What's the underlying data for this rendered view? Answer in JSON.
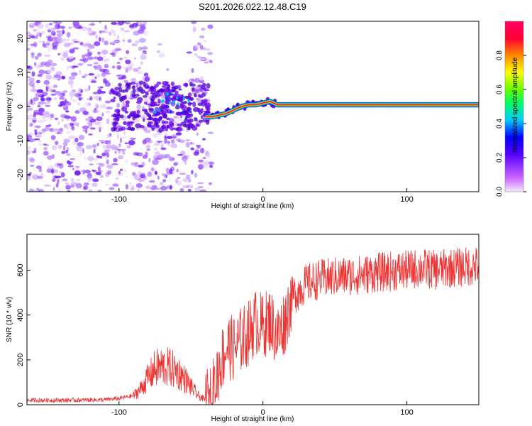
{
  "title": "S201.2026.022.12.48.C19",
  "chart_data": [
    {
      "type": "heatmap",
      "xlabel": "Height of straight line (km)",
      "ylabel": "Frequency (Hz)",
      "xlim": [
        -164,
        150
      ],
      "ylim": [
        -25,
        25
      ],
      "xticks": [
        -100,
        0,
        100
      ],
      "yticks": [
        -20,
        -10,
        0,
        10,
        20
      ],
      "grid": false,
      "colorbar": {
        "label": "Normalized spectral amplitude",
        "range": [
          0.0,
          1.0
        ],
        "ticks": [
          0.0,
          0.2,
          0.4,
          0.6,
          0.8
        ],
        "colors": [
          "#f0e0ff",
          "#cc66ff",
          "#6600ff",
          "#0000ff",
          "#00ccff",
          "#00ff66",
          "#66ff00",
          "#ffff00",
          "#ff8800",
          "#ff0033",
          "#ff0066"
        ]
      },
      "ridge": {
        "x": [
          -40,
          -35,
          -30,
          -25,
          -20,
          -15,
          -10,
          -5,
          0,
          5,
          10,
          20,
          40,
          60,
          80,
          100,
          120,
          150
        ],
        "y": [
          -3,
          -3,
          -2.5,
          -2,
          -1,
          0,
          0.5,
          0.5,
          1,
          1.5,
          0.5,
          0.5,
          0.5,
          0.5,
          0.5,
          0.5,
          0.5,
          0.5
        ]
      }
    },
    {
      "type": "line",
      "xlabel": "Height of straight line (km)",
      "ylabel": "SNR (10 * v/v)",
      "xlim": [
        -164,
        150
      ],
      "ylim": [
        0,
        760
      ],
      "xticks": [
        -100,
        0,
        100
      ],
      "yticks": [
        0,
        200,
        400,
        600
      ],
      "grid": false,
      "series": [
        {
          "color": "#ee3333",
          "x": [
            -164,
            -140,
            -110,
            -100,
            -90,
            -85,
            -80,
            -75,
            -70,
            -65,
            -60,
            -55,
            -50,
            -45,
            -40,
            -35,
            -30,
            -25,
            -20,
            -15,
            -10,
            -5,
            0,
            5,
            10,
            15,
            20,
            25,
            30,
            40,
            50,
            60,
            70,
            80,
            90,
            100,
            110,
            120,
            130,
            140,
            150
          ],
          "values": [
            20,
            20,
            22,
            28,
            40,
            70,
            120,
            160,
            170,
            165,
            150,
            120,
            80,
            40,
            20,
            50,
            180,
            260,
            250,
            290,
            320,
            370,
            350,
            380,
            300,
            370,
            480,
            510,
            540,
            560,
            570,
            575,
            580,
            590,
            595,
            600,
            610,
            600,
            610,
            615,
            620
          ]
        }
      ]
    }
  ]
}
